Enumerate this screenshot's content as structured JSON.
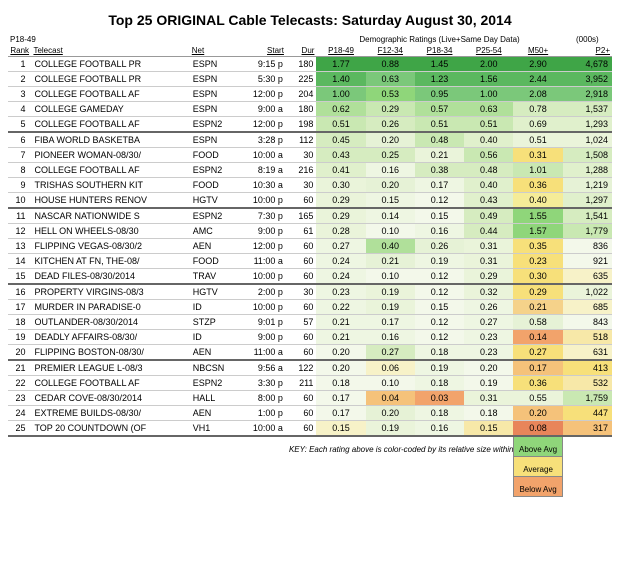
{
  "title": "Top 25 ORIGINAL Cable Telecasts:  Saturday August 30, 2014",
  "header": {
    "note_left": "P18-49",
    "demo_super": "Demographic Ratings (Live+Same Day Data)",
    "viewers_super": "(000s)",
    "cols": {
      "rank": "Rank",
      "telecast": "Telecast",
      "net": "Net",
      "start": "Start",
      "dur": "Dur",
      "p1849": "P18-49",
      "f1234": "F12-34",
      "p1834": "P18-34",
      "p2554": "P25-54",
      "m50": "M50+",
      "p2": "P2+"
    }
  },
  "colors": {
    "above": "#8fd67a",
    "avg": "#f7e07a",
    "below": "#f2a36b",
    "grid": "#cccccc"
  },
  "key": {
    "text": "KEY: Each rating above is color-coded by its relative size within each demographic group (above average, average, below average).",
    "above": "Above Avg",
    "avg": "Average",
    "below": "Below Avg"
  },
  "rows": [
    {
      "rank": 1,
      "telecast": "COLLEGE FOOTBALL PR",
      "net": "ESPN",
      "start": "9:15 p",
      "dur": 180,
      "cells": [
        {
          "v": "1.77",
          "c": "#3fa547"
        },
        {
          "v": "0.88",
          "c": "#3fa547"
        },
        {
          "v": "1.45",
          "c": "#3fa547"
        },
        {
          "v": "2.00",
          "c": "#3fa547"
        },
        {
          "v": "2.90",
          "c": "#3fa547"
        }
      ],
      "p2": "4,678",
      "p2c": "#3fa547"
    },
    {
      "rank": 2,
      "telecast": "COLLEGE FOOTBALL PR",
      "net": "ESPN",
      "start": "5:30 p",
      "dur": 225,
      "cells": [
        {
          "v": "1.40",
          "c": "#5bb85f"
        },
        {
          "v": "0.63",
          "c": "#7bc87a"
        },
        {
          "v": "1.23",
          "c": "#5bb85f"
        },
        {
          "v": "1.56",
          "c": "#5bb85f"
        },
        {
          "v": "2.44",
          "c": "#5bb85f"
        }
      ],
      "p2": "3,952",
      "p2c": "#5bb85f"
    },
    {
      "rank": 3,
      "telecast": "COLLEGE FOOTBALL AF",
      "net": "ESPN",
      "start": "12:00 p",
      "dur": 204,
      "cells": [
        {
          "v": "1.00",
          "c": "#7bc87a"
        },
        {
          "v": "0.53",
          "c": "#8fd67a"
        },
        {
          "v": "0.95",
          "c": "#7bc87a"
        },
        {
          "v": "1.00",
          "c": "#7bc87a"
        },
        {
          "v": "2.08",
          "c": "#7bc87a"
        }
      ],
      "p2": "2,918",
      "p2c": "#7bc87a"
    },
    {
      "rank": 4,
      "telecast": "COLLEGE GAMEDAY",
      "net": "ESPN",
      "start": "9:00 a",
      "dur": 180,
      "cells": [
        {
          "v": "0.62",
          "c": "#b0e09a"
        },
        {
          "v": "0.29",
          "c": "#c9e8b2"
        },
        {
          "v": "0.57",
          "c": "#b0e09a"
        },
        {
          "v": "0.63",
          "c": "#b0e09a"
        },
        {
          "v": "0.78",
          "c": "#d6ecc0"
        }
      ],
      "p2": "1,537",
      "p2c": "#d6ecc0"
    },
    {
      "rank": 5,
      "telecast": "COLLEGE FOOTBALL AF",
      "net": "ESPN2",
      "start": "12:00 p",
      "dur": 198,
      "cells": [
        {
          "v": "0.51",
          "c": "#c9e8b2"
        },
        {
          "v": "0.26",
          "c": "#d6ecc0"
        },
        {
          "v": "0.51",
          "c": "#c9e8b2"
        },
        {
          "v": "0.51",
          "c": "#c9e8b2"
        },
        {
          "v": "0.69",
          "c": "#e0f0cc"
        }
      ],
      "p2": "1,293",
      "p2c": "#e0f0cc"
    },
    {
      "rank": 6,
      "telecast": "FIBA WORLD BASKETBA",
      "net": "ESPN",
      "start": "3:28 p",
      "dur": 112,
      "cells": [
        {
          "v": "0.45",
          "c": "#d6ecc0"
        },
        {
          "v": "0.20",
          "c": "#e6f2d6"
        },
        {
          "v": "0.48",
          "c": "#c9e8b2"
        },
        {
          "v": "0.40",
          "c": "#e0f0cc"
        },
        {
          "v": "0.51",
          "c": "#eaf4da"
        }
      ],
      "p2": "1,024",
      "p2c": "#eaf4da"
    },
    {
      "rank": 7,
      "telecast": "PIONEER WOMAN-08/30/",
      "net": "FOOD",
      "start": "10:00 a",
      "dur": 30,
      "cells": [
        {
          "v": "0.43",
          "c": "#d6ecc0"
        },
        {
          "v": "0.25",
          "c": "#d6ecc0"
        },
        {
          "v": "0.21",
          "c": "#eaf4da"
        },
        {
          "v": "0.56",
          "c": "#c9e8b2"
        },
        {
          "v": "0.31",
          "c": "#f7e07a"
        }
      ],
      "p2": "1,508",
      "p2c": "#d6ecc0"
    },
    {
      "rank": 8,
      "telecast": "COLLEGE FOOTBALL AF",
      "net": "ESPN2",
      "start": "8:19 a",
      "dur": 216,
      "cells": [
        {
          "v": "0.41",
          "c": "#e0f0cc"
        },
        {
          "v": "0.16",
          "c": "#eef6e2"
        },
        {
          "v": "0.38",
          "c": "#d6ecc0"
        },
        {
          "v": "0.48",
          "c": "#d6ecc0"
        },
        {
          "v": "1.01",
          "c": "#c9e8b2"
        }
      ],
      "p2": "1,288",
      "p2c": "#e0f0cc"
    },
    {
      "rank": 9,
      "telecast": "TRISHAS SOUTHERN KIT",
      "net": "FOOD",
      "start": "10:30 a",
      "dur": 30,
      "cells": [
        {
          "v": "0.30",
          "c": "#eaf4da"
        },
        {
          "v": "0.20",
          "c": "#e6f2d6"
        },
        {
          "v": "0.17",
          "c": "#eef6e2"
        },
        {
          "v": "0.40",
          "c": "#e0f0cc"
        },
        {
          "v": "0.36",
          "c": "#f7e07a"
        }
      ],
      "p2": "1,219",
      "p2c": "#e6f2d6"
    },
    {
      "rank": 10,
      "telecast": "HOUSE HUNTERS RENOV",
      "net": "HGTV",
      "start": "10:00 p",
      "dur": 60,
      "cells": [
        {
          "v": "0.29",
          "c": "#eaf4da"
        },
        {
          "v": "0.15",
          "c": "#eef6e2"
        },
        {
          "v": "0.12",
          "c": "#f3f8ea"
        },
        {
          "v": "0.43",
          "c": "#e0f0cc"
        },
        {
          "v": "0.40",
          "c": "#f5ec98"
        }
      ],
      "p2": "1,297",
      "p2c": "#e0f0cc"
    },
    {
      "rank": 11,
      "telecast": "NASCAR NATIONWIDE S",
      "net": "ESPN2",
      "start": "7:30 p",
      "dur": 165,
      "cells": [
        {
          "v": "0.29",
          "c": "#eaf4da"
        },
        {
          "v": "0.14",
          "c": "#eef6e2"
        },
        {
          "v": "0.15",
          "c": "#f3f8ea"
        },
        {
          "v": "0.49",
          "c": "#d6ecc0"
        },
        {
          "v": "1.55",
          "c": "#8fd67a"
        }
      ],
      "p2": "1,541",
      "p2c": "#d6ecc0"
    },
    {
      "rank": 12,
      "telecast": "HELL ON WHEELS-08/30",
      "net": "AMC",
      "start": "9:00 p",
      "dur": 61,
      "cells": [
        {
          "v": "0.28",
          "c": "#eaf4da"
        },
        {
          "v": "0.10",
          "c": "#f3f8ea"
        },
        {
          "v": "0.16",
          "c": "#eef6e2"
        },
        {
          "v": "0.44",
          "c": "#d6ecc0"
        },
        {
          "v": "1.57",
          "c": "#8fd67a"
        }
      ],
      "p2": "1,779",
      "p2c": "#c9e8b2"
    },
    {
      "rank": 13,
      "telecast": "FLIPPING VEGAS-08/30/2",
      "net": "AEN",
      "start": "12:00 p",
      "dur": 60,
      "cells": [
        {
          "v": "0.27",
          "c": "#eef6e2"
        },
        {
          "v": "0.40",
          "c": "#b0e09a"
        },
        {
          "v": "0.26",
          "c": "#e6f2d6"
        },
        {
          "v": "0.31",
          "c": "#eaf4da"
        },
        {
          "v": "0.35",
          "c": "#f7e07a"
        }
      ],
      "p2": "836",
      "p2c": "#f3f8ea"
    },
    {
      "rank": 14,
      "telecast": "KITCHEN AT FN, THE-08/",
      "net": "FOOD",
      "start": "11:00 a",
      "dur": 60,
      "cells": [
        {
          "v": "0.24",
          "c": "#eef6e2"
        },
        {
          "v": "0.21",
          "c": "#e6f2d6"
        },
        {
          "v": "0.19",
          "c": "#eef6e2"
        },
        {
          "v": "0.31",
          "c": "#eaf4da"
        },
        {
          "v": "0.23",
          "c": "#f7e07a"
        }
      ],
      "p2": "921",
      "p2c": "#f3f8ea"
    },
    {
      "rank": 15,
      "telecast": "DEAD FILES-08/30/2014",
      "net": "TRAV",
      "start": "10:00 p",
      "dur": 60,
      "cells": [
        {
          "v": "0.24",
          "c": "#eef6e2"
        },
        {
          "v": "0.10",
          "c": "#f3f8ea"
        },
        {
          "v": "0.12",
          "c": "#f3f8ea"
        },
        {
          "v": "0.29",
          "c": "#eaf4da"
        },
        {
          "v": "0.30",
          "c": "#f7e07a"
        }
      ],
      "p2": "635",
      "p2c": "#f7f2c8"
    },
    {
      "rank": 16,
      "telecast": "PROPERTY VIRGINS-08/3",
      "net": "HGTV",
      "start": "2:00 p",
      "dur": 30,
      "cells": [
        {
          "v": "0.23",
          "c": "#eef6e2"
        },
        {
          "v": "0.19",
          "c": "#eaf4da"
        },
        {
          "v": "0.12",
          "c": "#f3f8ea"
        },
        {
          "v": "0.32",
          "c": "#eaf4da"
        },
        {
          "v": "0.29",
          "c": "#f7e07a"
        }
      ],
      "p2": "1,022",
      "p2c": "#eaf4da"
    },
    {
      "rank": 17,
      "telecast": "MURDER IN PARADISE-0",
      "net": "ID",
      "start": "10:00 p",
      "dur": 60,
      "cells": [
        {
          "v": "0.22",
          "c": "#eef6e2"
        },
        {
          "v": "0.19",
          "c": "#eaf4da"
        },
        {
          "v": "0.15",
          "c": "#f3f8ea"
        },
        {
          "v": "0.26",
          "c": "#eef6e2"
        },
        {
          "v": "0.21",
          "c": "#f5d28a"
        }
      ],
      "p2": "685",
      "p2c": "#f7f2c8"
    },
    {
      "rank": 18,
      "telecast": "OUTLANDER-08/30/2014",
      "net": "STZP",
      "start": "9:01 p",
      "dur": 57,
      "cells": [
        {
          "v": "0.21",
          "c": "#eef6e2"
        },
        {
          "v": "0.17",
          "c": "#eef6e2"
        },
        {
          "v": "0.12",
          "c": "#f3f8ea"
        },
        {
          "v": "0.27",
          "c": "#eef6e2"
        },
        {
          "v": "0.58",
          "c": "#e6f2d6"
        }
      ],
      "p2": "843",
      "p2c": "#f3f8ea"
    },
    {
      "rank": 19,
      "telecast": "DEADLY AFFAIRS-08/30/",
      "net": "ID",
      "start": "9:00 p",
      "dur": 60,
      "cells": [
        {
          "v": "0.21",
          "c": "#eef6e2"
        },
        {
          "v": "0.16",
          "c": "#eef6e2"
        },
        {
          "v": "0.12",
          "c": "#f3f8ea"
        },
        {
          "v": "0.23",
          "c": "#eef6e2"
        },
        {
          "v": "0.14",
          "c": "#f2a36b"
        }
      ],
      "p2": "518",
      "p2c": "#f7e8a8"
    },
    {
      "rank": 20,
      "telecast": "FLIPPING BOSTON-08/30/",
      "net": "AEN",
      "start": "11:00 a",
      "dur": 60,
      "cells": [
        {
          "v": "0.20",
          "c": "#f3f8ea"
        },
        {
          "v": "0.27",
          "c": "#d6ecc0"
        },
        {
          "v": "0.18",
          "c": "#eef6e2"
        },
        {
          "v": "0.23",
          "c": "#eef6e2"
        },
        {
          "v": "0.27",
          "c": "#f7e07a"
        }
      ],
      "p2": "631",
      "p2c": "#f7f2c8"
    },
    {
      "rank": 21,
      "telecast": "PREMIER LEAGUE L-08/3",
      "net": "NBCSN",
      "start": "9:56 a",
      "dur": 122,
      "cells": [
        {
          "v": "0.20",
          "c": "#f3f8ea"
        },
        {
          "v": "0.06",
          "c": "#f7f2c8"
        },
        {
          "v": "0.19",
          "c": "#eef6e2"
        },
        {
          "v": "0.20",
          "c": "#f3f8ea"
        },
        {
          "v": "0.17",
          "c": "#f5c27a"
        }
      ],
      "p2": "413",
      "p2c": "#f7e07a"
    },
    {
      "rank": 22,
      "telecast": "COLLEGE FOOTBALL AF",
      "net": "ESPN2",
      "start": "3:30 p",
      "dur": 211,
      "cells": [
        {
          "v": "0.18",
          "c": "#f3f8ea"
        },
        {
          "v": "0.10",
          "c": "#f3f8ea"
        },
        {
          "v": "0.18",
          "c": "#eef6e2"
        },
        {
          "v": "0.19",
          "c": "#f3f8ea"
        },
        {
          "v": "0.36",
          "c": "#f7e07a"
        }
      ],
      "p2": "532",
      "p2c": "#f7e8a8"
    },
    {
      "rank": 23,
      "telecast": "CEDAR COVE-08/30/2014",
      "net": "HALL",
      "start": "8:00 p",
      "dur": 60,
      "cells": [
        {
          "v": "0.17",
          "c": "#f3f8ea"
        },
        {
          "v": "0.04",
          "c": "#f5c27a"
        },
        {
          "v": "0.03",
          "c": "#f2a36b"
        },
        {
          "v": "0.31",
          "c": "#eaf4da"
        },
        {
          "v": "0.55",
          "c": "#eaf4da"
        }
      ],
      "p2": "1,759",
      "p2c": "#c9e8b2"
    },
    {
      "rank": 24,
      "telecast": "EXTREME BUILDS-08/30/",
      "net": "AEN",
      "start": "1:00 p",
      "dur": 60,
      "cells": [
        {
          "v": "0.17",
          "c": "#f3f8ea"
        },
        {
          "v": "0.20",
          "c": "#e6f2d6"
        },
        {
          "v": "0.18",
          "c": "#eef6e2"
        },
        {
          "v": "0.18",
          "c": "#f3f8ea"
        },
        {
          "v": "0.20",
          "c": "#f5c27a"
        }
      ],
      "p2": "447",
      "p2c": "#f7e07a"
    },
    {
      "rank": 25,
      "telecast": "TOP 20 COUNTDOWN (OF",
      "net": "VH1",
      "start": "10:00 a",
      "dur": 60,
      "cells": [
        {
          "v": "0.15",
          "c": "#f7f2c8"
        },
        {
          "v": "0.19",
          "c": "#eaf4da"
        },
        {
          "v": "0.16",
          "c": "#eef6e2"
        },
        {
          "v": "0.15",
          "c": "#f7e8a8"
        },
        {
          "v": "0.08",
          "c": "#e8855a"
        }
      ],
      "p2": "317",
      "p2c": "#f5c27a"
    }
  ]
}
